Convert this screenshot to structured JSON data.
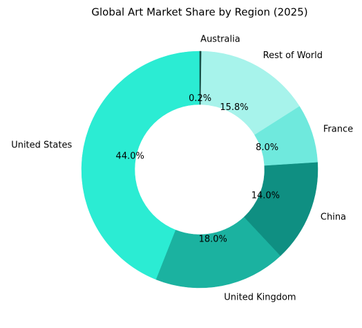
{
  "chart_data": {
    "type": "donut",
    "title": "Global Art Market Share by Region (2025)",
    "categories": [
      "United States",
      "United Kingdom",
      "China",
      "France",
      "Rest of World",
      "Australia"
    ],
    "values": [
      44.0,
      18.0,
      14.0,
      8.0,
      15.8,
      0.2
    ],
    "value_labels": [
      "44.0%",
      "18.0%",
      "14.0%",
      "8.0%",
      "15.8%",
      "0.2%"
    ],
    "colors": [
      "#2becd3",
      "#1bb2a0",
      "#0f8f82",
      "#6fe9dd",
      "#a7f3eb",
      "#134e45"
    ]
  }
}
